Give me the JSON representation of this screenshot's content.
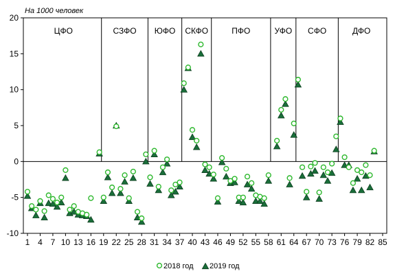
{
  "chart_data": {
    "type": "scatter",
    "unit_label": "На 1000 человек",
    "ylim": [
      -10,
      20
    ],
    "yticks": [
      "-10",
      "-5",
      "0",
      "5",
      "10",
      "15",
      "20"
    ],
    "xlim": [
      1,
      85
    ],
    "xticks": [
      "1",
      "4",
      "7",
      "10",
      "13",
      "16",
      "19",
      "22",
      "25",
      "28",
      "31",
      "34",
      "37",
      "40",
      "43",
      "46",
      "49",
      "52",
      "55",
      "58",
      "61",
      "64",
      "67",
      "70",
      "73",
      "76",
      "79",
      "82",
      "85"
    ],
    "grid": false,
    "legend_position": "bottom",
    "groups": [
      {
        "label": "ЦФО",
        "start": 1,
        "end": 18
      },
      {
        "label": "СЗФО",
        "start": 19,
        "end": 29
      },
      {
        "label": "ЮФО",
        "start": 30,
        "end": 37
      },
      {
        "label": "СКФО",
        "start": 38,
        "end": 44
      },
      {
        "label": "ПФО",
        "start": 45,
        "end": 58
      },
      {
        "label": "УФО",
        "start": 59,
        "end": 64
      },
      {
        "label": "СФО",
        "start": 65,
        "end": 74
      },
      {
        "label": "ДФО",
        "start": 75,
        "end": 85
      }
    ],
    "series": [
      {
        "name": "2018 год",
        "marker": "circle",
        "color": "#2db82d",
        "values": [
          -4.2,
          -6.2,
          -6.7,
          -5.5,
          -6.9,
          -4.7,
          -5.2,
          -5.7,
          -5.0,
          -1.2,
          -6.7,
          -6.2,
          -7.0,
          -7.2,
          -7.4,
          -5.1,
          1.3,
          -5.0,
          -1.5,
          -3.6,
          4.9,
          -3.8,
          -1.9,
          -5.1,
          -1.4,
          -7.0,
          -7.9,
          1.0,
          -2.2,
          1.5,
          -3.5,
          -0.8,
          0.3,
          -4.0,
          -3.2,
          -2.9,
          10.9,
          13.1,
          4.4,
          2.9,
          16.3,
          -0.4,
          -0.8,
          -1.8,
          -5.1,
          0.5,
          -1.0,
          -2.7,
          -2.4,
          -5.0,
          -5.0,
          -2.1,
          -3.0,
          -4.7,
          -4.9,
          -5.1,
          -1.9,
          2.9,
          7.2,
          8.7,
          -2.3,
          5.3,
          11.4,
          -0.8,
          -4.2,
          -0.7,
          -0.2,
          -4.3,
          -0.8,
          -1.5,
          -0.3,
          3.5,
          6.0,
          0.6,
          -0.8,
          -3.0,
          -1.2,
          -1.5,
          -0.5,
          -1.9,
          1.5
        ],
        "x": [
          1,
          2,
          3,
          4,
          5,
          6,
          7,
          8,
          9,
          10,
          11,
          12,
          13,
          14,
          15,
          16,
          18,
          19,
          20,
          21,
          22,
          23,
          24,
          25,
          26,
          27,
          28,
          29,
          30,
          31,
          32,
          33,
          34,
          35,
          36,
          37,
          38,
          39,
          40,
          41,
          42,
          43,
          44,
          45,
          46,
          47,
          48,
          49,
          50,
          51,
          52,
          53,
          54,
          55,
          56,
          57,
          58,
          60,
          61,
          62,
          63,
          64,
          65,
          66,
          67,
          68,
          69,
          70,
          71,
          72,
          73,
          74,
          75,
          76,
          77,
          78,
          79,
          80,
          81,
          82,
          83
        ]
      },
      {
        "name": "2019 год",
        "marker": "triangle",
        "color": "#1a6e3a",
        "values": [
          -4.8,
          -6.5,
          -7.5,
          -5.8,
          -7.8,
          -5.8,
          -5.9,
          -6.3,
          -5.7,
          -2.3,
          -7.2,
          -7.0,
          -7.4,
          -7.5,
          -7.6,
          -8.1,
          1.1,
          -5.5,
          -2.2,
          -4.4,
          5.0,
          -4.4,
          -2.8,
          -5.5,
          -2.3,
          -7.8,
          -8.4,
          0.0,
          -3.1,
          1.0,
          -4.0,
          -1.5,
          -0.3,
          -4.7,
          -4.2,
          -3.5,
          10.0,
          13.0,
          3.4,
          2.0,
          15.0,
          -1.2,
          -1.7,
          -2.4,
          -5.6,
          -0.1,
          -2.1,
          -3.0,
          -2.9,
          -5.5,
          -5.7,
          -3.2,
          -3.8,
          -5.5,
          -5.5,
          -5.9,
          -2.7,
          2.1,
          6.4,
          8.0,
          -3.2,
          3.7,
          10.7,
          -2.0,
          -5.0,
          -1.7,
          -1.3,
          -5.2,
          -1.9,
          -2.7,
          -1.6,
          1.7,
          5.5,
          -0.5,
          -0.5,
          -4.0,
          -2.4,
          -4.0,
          -2.0,
          -3.6,
          1.4
        ],
        "x": [
          1,
          2,
          3,
          4,
          5,
          6,
          7,
          8,
          9,
          10,
          11,
          12,
          13,
          14,
          15,
          16,
          18,
          19,
          20,
          21,
          22,
          23,
          24,
          25,
          26,
          27,
          28,
          29,
          30,
          31,
          32,
          33,
          34,
          35,
          36,
          37,
          38,
          39,
          40,
          41,
          42,
          43,
          44,
          45,
          46,
          47,
          48,
          49,
          50,
          51,
          52,
          53,
          54,
          55,
          56,
          57,
          58,
          60,
          61,
          62,
          63,
          64,
          65,
          66,
          67,
          68,
          69,
          70,
          71,
          72,
          73,
          74,
          75,
          76,
          77,
          78,
          79,
          80,
          81,
          82,
          83
        ]
      }
    ]
  }
}
